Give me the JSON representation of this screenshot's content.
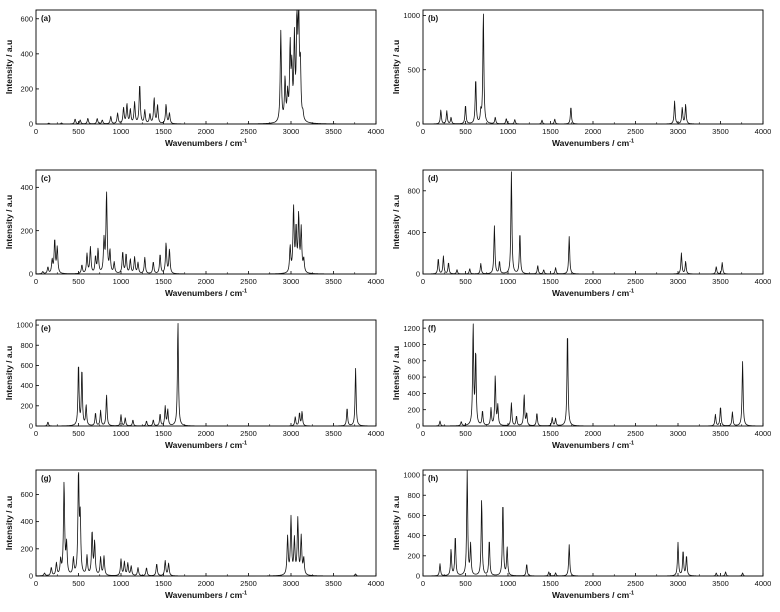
{
  "chart_data": [
    {
      "type": "line",
      "panel_label": "(a)",
      "xlabel": "Wavenumbers / cm",
      "xlabel_sup": "-1",
      "ylabel": "Intensity / a.u",
      "xlim": [
        0,
        4000
      ],
      "ylim": [
        0,
        650
      ],
      "xticks": [
        0,
        500,
        1000,
        1500,
        2000,
        2500,
        3000,
        3500,
        4000
      ],
      "yticks": [
        0,
        200,
        400,
        600
      ],
      "peaks": [
        [
          150,
          5
        ],
        [
          300,
          6
        ],
        [
          460,
          28
        ],
        [
          520,
          22
        ],
        [
          610,
          32
        ],
        [
          720,
          30
        ],
        [
          780,
          22
        ],
        [
          880,
          42
        ],
        [
          960,
          60
        ],
        [
          1030,
          90
        ],
        [
          1070,
          110
        ],
        [
          1110,
          80
        ],
        [
          1160,
          120
        ],
        [
          1220,
          225
        ],
        [
          1280,
          75
        ],
        [
          1340,
          55
        ],
        [
          1390,
          145
        ],
        [
          1430,
          105
        ],
        [
          1530,
          110
        ],
        [
          1570,
          60
        ],
        [
          2880,
          520
        ],
        [
          2930,
          240
        ],
        [
          2960,
          150
        ],
        [
          2990,
          420
        ],
        [
          3010,
          280
        ],
        [
          3040,
          460
        ],
        [
          3070,
          580
        ],
        [
          3090,
          610
        ],
        [
          3110,
          300
        ],
        [
          3140,
          40
        ]
      ],
      "width": 8
    },
    {
      "type": "line",
      "panel_label": "(b)",
      "xlabel": "Wavenumbers / cm",
      "xlabel_sup": "-1",
      "ylabel": "Intensity / a.u",
      "xlim": [
        0,
        4000
      ],
      "ylim": [
        0,
        1050
      ],
      "xticks": [
        0,
        500,
        1000,
        1500,
        2000,
        2500,
        3000,
        3500,
        4000
      ],
      "yticks": [
        0,
        500,
        1000
      ],
      "peaks": [
        [
          210,
          130
        ],
        [
          280,
          120
        ],
        [
          330,
          60
        ],
        [
          500,
          175
        ],
        [
          620,
          420
        ],
        [
          680,
          100
        ],
        [
          710,
          1030
        ],
        [
          850,
          60
        ],
        [
          980,
          50
        ],
        [
          1080,
          40
        ],
        [
          1400,
          35
        ],
        [
          1550,
          45
        ],
        [
          1740,
          160
        ],
        [
          2960,
          210
        ],
        [
          3050,
          150
        ],
        [
          3090,
          180
        ]
      ],
      "width": 7
    },
    {
      "type": "line",
      "panel_label": "(c)",
      "xlabel": "Wavenumbers / cm",
      "xlabel_sup": "-1",
      "ylabel": "Intensity / a.u",
      "xlim": [
        0,
        4000
      ],
      "ylim": [
        0,
        480
      ],
      "xticks": [
        0,
        500,
        1000,
        1500,
        2000,
        2500,
        3000,
        3500,
        4000
      ],
      "yticks": [
        0,
        200,
        400
      ],
      "peaks": [
        [
          80,
          10
        ],
        [
          140,
          30
        ],
        [
          190,
          60
        ],
        [
          220,
          155
        ],
        [
          250,
          120
        ],
        [
          540,
          40
        ],
        [
          600,
          90
        ],
        [
          640,
          120
        ],
        [
          700,
          75
        ],
        [
          730,
          110
        ],
        [
          800,
          150
        ],
        [
          830,
          370
        ],
        [
          870,
          100
        ],
        [
          920,
          50
        ],
        [
          1020,
          100
        ],
        [
          1060,
          90
        ],
        [
          1110,
          65
        ],
        [
          1160,
          75
        ],
        [
          1200,
          50
        ],
        [
          1280,
          75
        ],
        [
          1380,
          55
        ],
        [
          1460,
          90
        ],
        [
          1530,
          140
        ],
        [
          1570,
          110
        ],
        [
          2990,
          120
        ],
        [
          3030,
          300
        ],
        [
          3060,
          200
        ],
        [
          3090,
          260
        ],
        [
          3120,
          200
        ],
        [
          3150,
          60
        ]
      ],
      "width": 8
    },
    {
      "type": "line",
      "panel_label": "(d)",
      "xlabel": "Wavenumbers / cm",
      "xlabel_sup": "-1",
      "ylabel": "Intensity / a.u",
      "xlim": [
        0,
        4000
      ],
      "ylim": [
        0,
        1000
      ],
      "xticks": [
        0,
        500,
        1000,
        1500,
        2000,
        2500,
        3000,
        3500,
        4000
      ],
      "yticks": [
        0,
        400,
        800
      ],
      "peaks": [
        [
          180,
          150
        ],
        [
          240,
          170
        ],
        [
          300,
          110
        ],
        [
          400,
          40
        ],
        [
          550,
          50
        ],
        [
          680,
          100
        ],
        [
          840,
          460
        ],
        [
          900,
          120
        ],
        [
          1040,
          980
        ],
        [
          1140,
          400
        ],
        [
          1350,
          80
        ],
        [
          1420,
          40
        ],
        [
          1560,
          60
        ],
        [
          1720,
          360
        ],
        [
          3040,
          200
        ],
        [
          3090,
          120
        ],
        [
          3450,
          70
        ],
        [
          3520,
          110
        ]
      ],
      "width": 7
    },
    {
      "type": "line",
      "panel_label": "(e)",
      "xlabel": "Wavenumbers / cm",
      "xlabel_sup": "-1",
      "ylabel": "Intensity / a.u",
      "xlim": [
        0,
        4000
      ],
      "ylim": [
        0,
        1050
      ],
      "xticks": [
        0,
        500,
        1000,
        1500,
        2000,
        2500,
        3000,
        3500,
        4000
      ],
      "yticks": [
        0,
        200,
        400,
        600,
        800,
        1000
      ],
      "peaks": [
        [
          140,
          40
        ],
        [
          500,
          620
        ],
        [
          540,
          560
        ],
        [
          590,
          200
        ],
        [
          700,
          130
        ],
        [
          760,
          150
        ],
        [
          830,
          310
        ],
        [
          1000,
          110
        ],
        [
          1050,
          80
        ],
        [
          1140,
          60
        ],
        [
          1300,
          50
        ],
        [
          1380,
          60
        ],
        [
          1460,
          120
        ],
        [
          1520,
          190
        ],
        [
          1550,
          160
        ],
        [
          1670,
          1040
        ],
        [
          3050,
          90
        ],
        [
          3100,
          130
        ],
        [
          3130,
          140
        ],
        [
          3660,
          180
        ],
        [
          3760,
          570
        ]
      ],
      "width": 7
    },
    {
      "type": "line",
      "panel_label": "(f)",
      "xlabel": "Wavenumbers / cm",
      "xlabel_sup": "-1",
      "ylabel": "Intensity / a.u",
      "xlim": [
        0,
        4000
      ],
      "ylim": [
        0,
        1300
      ],
      "xticks": [
        0,
        500,
        1000,
        1500,
        2000,
        2500,
        3000,
        3500,
        4000
      ],
      "yticks": [
        0,
        200,
        400,
        600,
        800,
        1000,
        1200
      ],
      "peaks": [
        [
          200,
          60
        ],
        [
          450,
          50
        ],
        [
          590,
          1230
        ],
        [
          620,
          900
        ],
        [
          700,
          180
        ],
        [
          800,
          210
        ],
        [
          850,
          610
        ],
        [
          880,
          240
        ],
        [
          1040,
          280
        ],
        [
          1100,
          120
        ],
        [
          1190,
          380
        ],
        [
          1220,
          150
        ],
        [
          1340,
          160
        ],
        [
          1520,
          100
        ],
        [
          1560,
          90
        ],
        [
          1700,
          1180
        ],
        [
          3440,
          140
        ],
        [
          3500,
          240
        ],
        [
          3640,
          170
        ],
        [
          3760,
          790
        ]
      ],
      "width": 7
    },
    {
      "type": "line",
      "panel_label": "(g)",
      "xlabel": "Wavenumbers / cm",
      "xlabel_sup": "-1",
      "ylabel": "Intensity / a.u",
      "xlim": [
        0,
        4000
      ],
      "ylim": [
        0,
        780
      ],
      "xticks": [
        0,
        500,
        1000,
        1500,
        2000,
        2500,
        3000,
        3500,
        4000
      ],
      "yticks": [
        0,
        200,
        400,
        600
      ],
      "peaks": [
        [
          100,
          20
        ],
        [
          180,
          60
        ],
        [
          240,
          90
        ],
        [
          290,
          110
        ],
        [
          330,
          680
        ],
        [
          360,
          220
        ],
        [
          440,
          120
        ],
        [
          500,
          740
        ],
        [
          520,
          400
        ],
        [
          600,
          140
        ],
        [
          660,
          320
        ],
        [
          690,
          240
        ],
        [
          760,
          130
        ],
        [
          800,
          140
        ],
        [
          1000,
          120
        ],
        [
          1040,
          100
        ],
        [
          1080,
          90
        ],
        [
          1120,
          70
        ],
        [
          1200,
          60
        ],
        [
          1300,
          60
        ],
        [
          1420,
          90
        ],
        [
          1520,
          110
        ],
        [
          1560,
          90
        ],
        [
          2960,
          280
        ],
        [
          3000,
          420
        ],
        [
          3040,
          260
        ],
        [
          3080,
          410
        ],
        [
          3120,
          280
        ],
        [
          3150,
          120
        ],
        [
          3760,
          15
        ]
      ],
      "width": 8
    },
    {
      "type": "line",
      "panel_label": "(h)",
      "xlabel": "Wavenumbers / cm",
      "xlabel_sup": "-1",
      "ylabel": "Intensity / a.u",
      "xlim": [
        0,
        4000
      ],
      "ylim": [
        0,
        1050
      ],
      "xticks": [
        0,
        500,
        1000,
        1500,
        2000,
        2500,
        3000,
        3500,
        4000
      ],
      "yticks": [
        0,
        200,
        400,
        600,
        800,
        1000
      ],
      "peaks": [
        [
          200,
          120
        ],
        [
          330,
          260
        ],
        [
          380,
          400
        ],
        [
          520,
          1040
        ],
        [
          560,
          300
        ],
        [
          690,
          760
        ],
        [
          780,
          360
        ],
        [
          940,
          740
        ],
        [
          990,
          280
        ],
        [
          1220,
          120
        ],
        [
          1480,
          40
        ],
        [
          1560,
          30
        ],
        [
          1720,
          310
        ],
        [
          3000,
          330
        ],
        [
          3060,
          250
        ],
        [
          3100,
          200
        ],
        [
          3450,
          30
        ],
        [
          3560,
          40
        ],
        [
          3760,
          30
        ]
      ],
      "width": 7
    }
  ]
}
